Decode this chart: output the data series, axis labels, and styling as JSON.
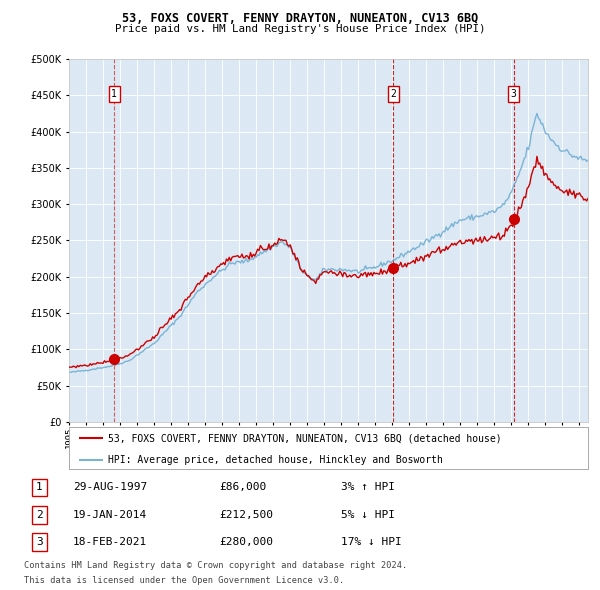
{
  "title": "53, FOXS COVERT, FENNY DRAYTON, NUNEATON, CV13 6BQ",
  "subtitle": "Price paid vs. HM Land Registry's House Price Index (HPI)",
  "legend_line1": "53, FOXS COVERT, FENNY DRAYTON, NUNEATON, CV13 6BQ (detached house)",
  "legend_line2": "HPI: Average price, detached house, Hinckley and Bosworth",
  "footer1": "Contains HM Land Registry data © Crown copyright and database right 2024.",
  "footer2": "This data is licensed under the Open Government Licence v3.0.",
  "transactions": [
    {
      "num": 1,
      "date": "29-AUG-1997",
      "price": 86000,
      "pct": "3%",
      "dir": "↑",
      "year_val": 1997.66
    },
    {
      "num": 2,
      "date": "19-JAN-2014",
      "price": 212500,
      "pct": "5%",
      "dir": "↓",
      "year_val": 2014.05
    },
    {
      "num": 3,
      "date": "18-FEB-2021",
      "price": 280000,
      "pct": "17%",
      "dir": "↓",
      "year_val": 2021.13
    }
  ],
  "hpi_color": "#7ab3d4",
  "price_color": "#cc0000",
  "background_color": "#dce9f5",
  "grid_color": "#ffffff",
  "marker_color": "#cc0000",
  "y_max": 500000,
  "y_min": 0,
  "x_min": 1995.0,
  "x_max": 2025.5,
  "hpi_anchors": [
    [
      1995.0,
      68000
    ],
    [
      1996.0,
      71000
    ],
    [
      1997.5,
      77000
    ],
    [
      1998.5,
      84000
    ],
    [
      2000.0,
      108000
    ],
    [
      2001.5,
      145000
    ],
    [
      2002.5,
      178000
    ],
    [
      2003.5,
      200000
    ],
    [
      2004.5,
      218000
    ],
    [
      2005.5,
      222000
    ],
    [
      2006.5,
      235000
    ],
    [
      2007.5,
      248000
    ],
    [
      2008.0,
      240000
    ],
    [
      2008.75,
      205000
    ],
    [
      2009.5,
      195000
    ],
    [
      2010.0,
      210000
    ],
    [
      2011.0,
      210000
    ],
    [
      2012.0,
      207000
    ],
    [
      2013.0,
      213000
    ],
    [
      2013.5,
      218000
    ],
    [
      2014.0,
      222000
    ],
    [
      2015.0,
      235000
    ],
    [
      2016.0,
      248000
    ],
    [
      2017.0,
      263000
    ],
    [
      2018.0,
      278000
    ],
    [
      2019.0,
      283000
    ],
    [
      2020.0,
      290000
    ],
    [
      2020.5,
      298000
    ],
    [
      2021.0,
      315000
    ],
    [
      2021.5,
      345000
    ],
    [
      2022.0,
      378000
    ],
    [
      2022.5,
      425000
    ],
    [
      2023.0,
      400000
    ],
    [
      2023.5,
      385000
    ],
    [
      2024.0,
      375000
    ],
    [
      2024.5,
      368000
    ],
    [
      2025.3,
      360000
    ]
  ]
}
